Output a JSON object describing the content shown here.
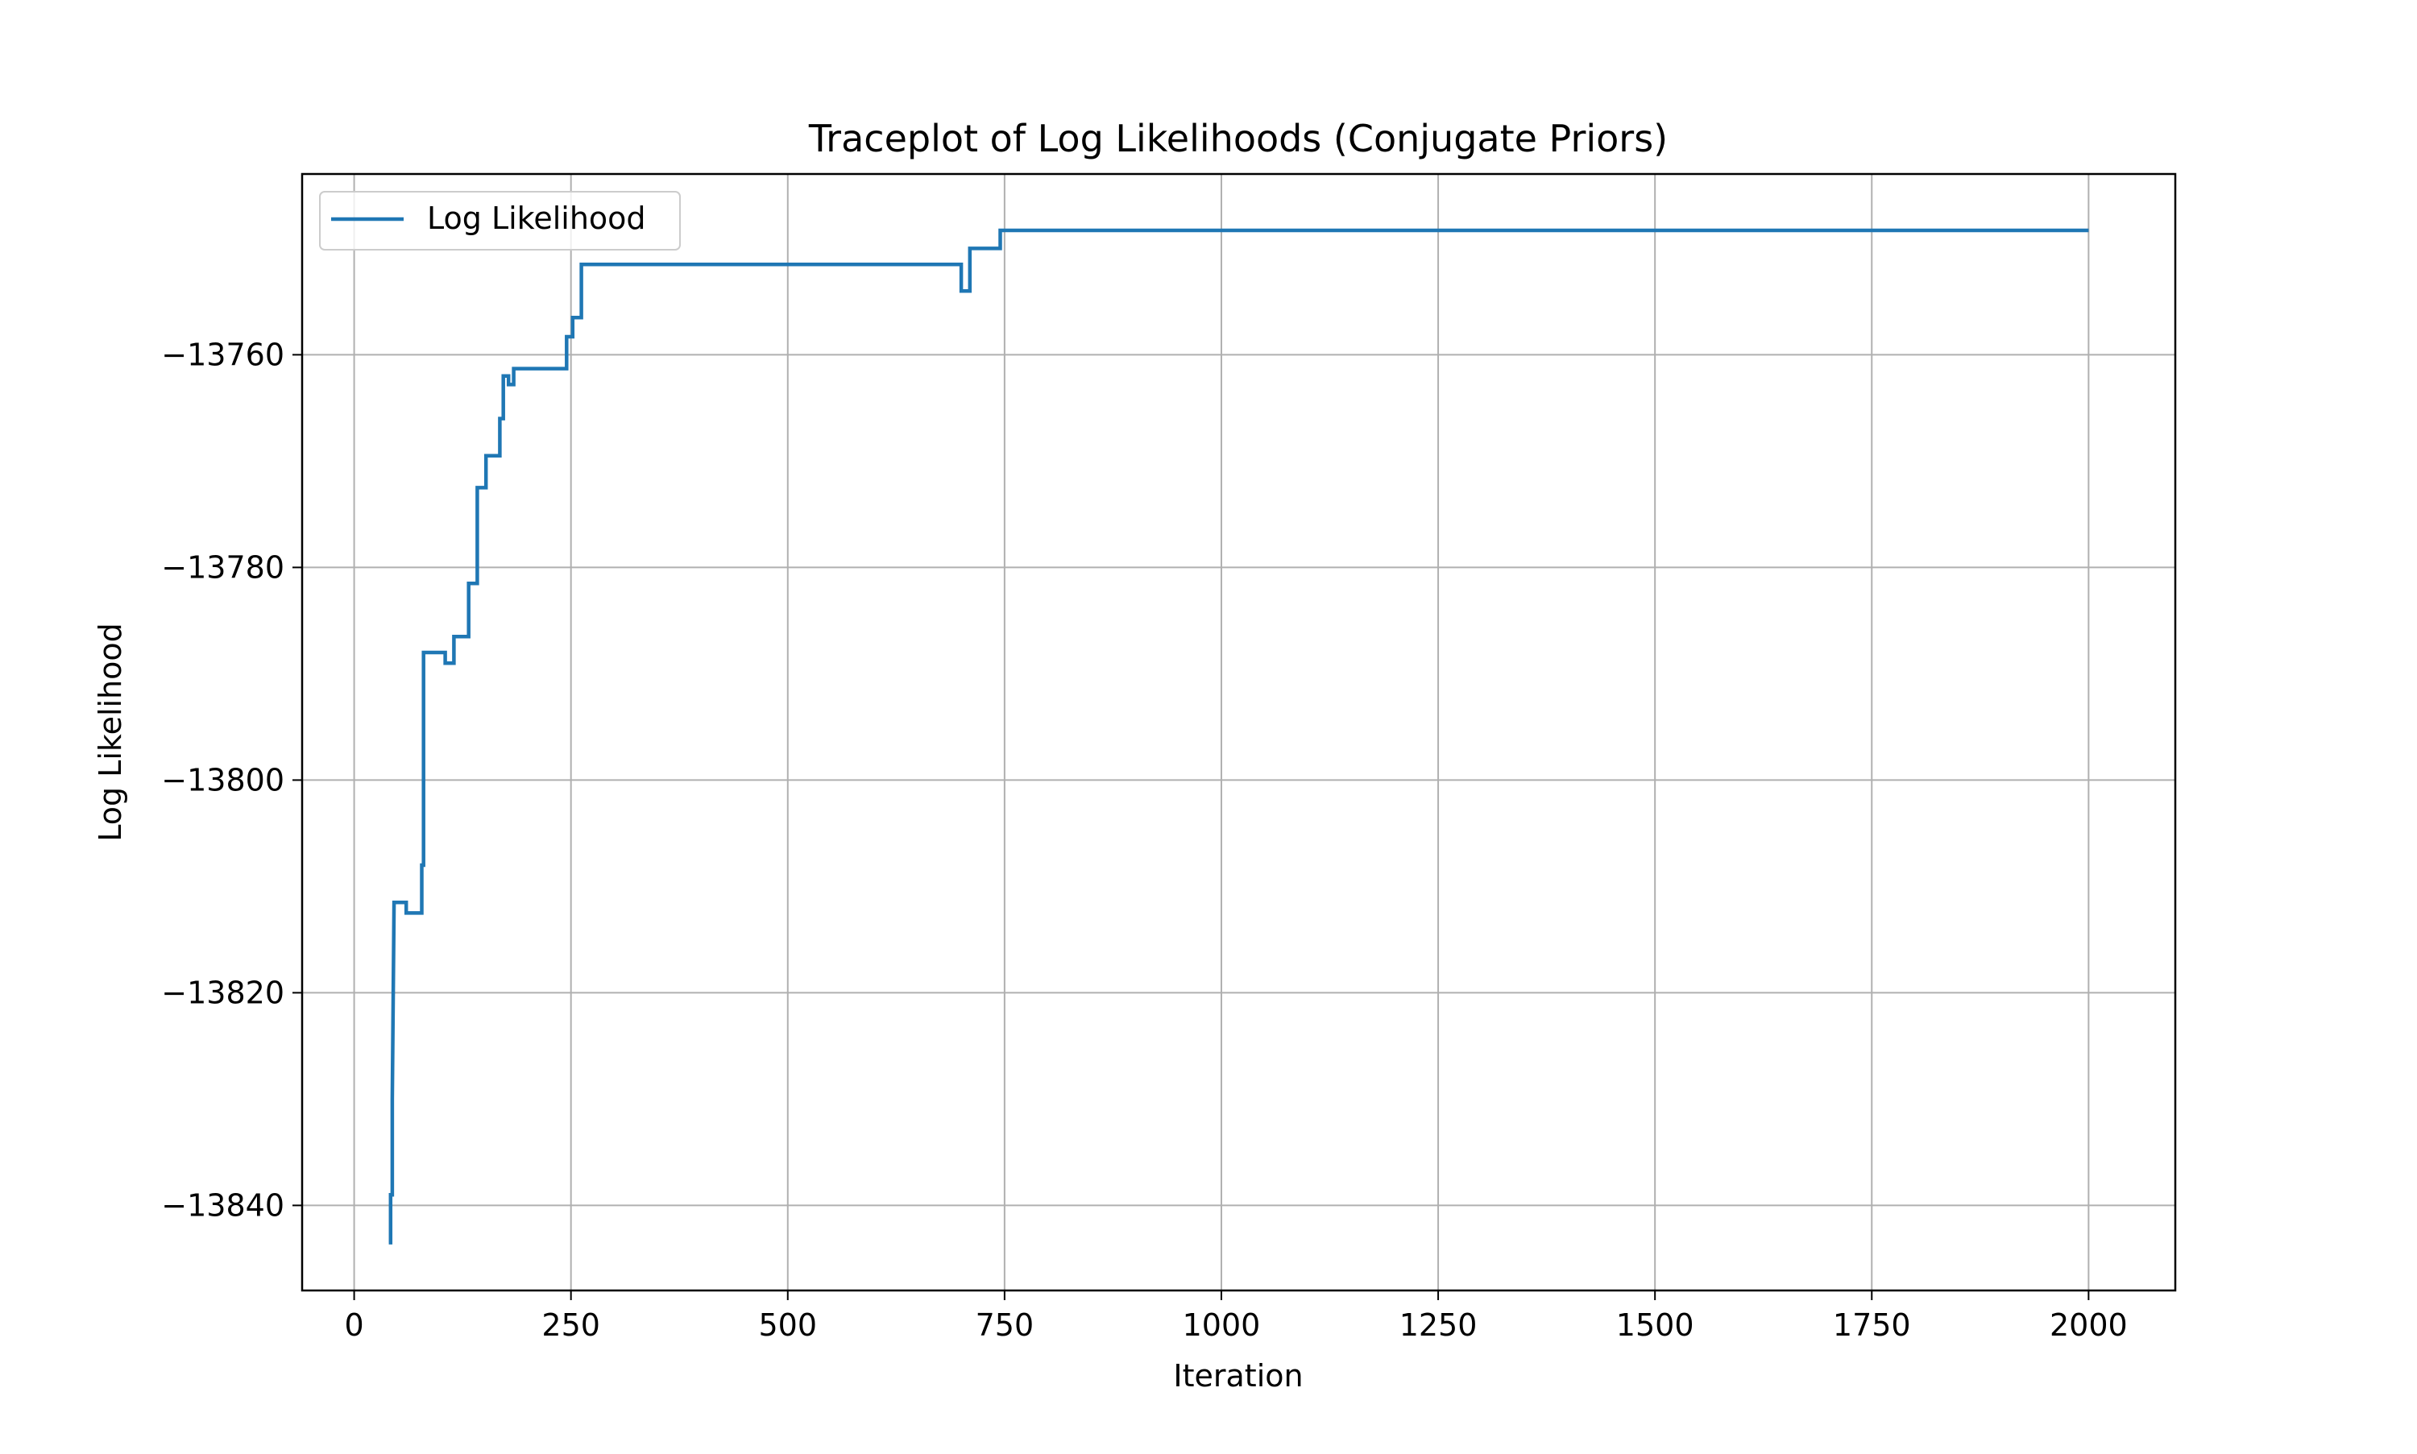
{
  "chart_data": {
    "type": "line",
    "title": "Traceplot of Log Likelihoods (Conjugate Priors)",
    "xlabel": "Iteration",
    "ylabel": "Log Likelihood",
    "xlim": [
      -60,
      2100
    ],
    "ylim": [
      -13848,
      -13743
    ],
    "xticks": [
      0,
      250,
      500,
      750,
      1000,
      1250,
      1500,
      1750,
      2000
    ],
    "yticks": [
      -13840,
      -13820,
      -13800,
      -13780,
      -13760
    ],
    "xtick_labels": [
      "0",
      "250",
      "500",
      "750",
      "1000",
      "1250",
      "1500",
      "1750",
      "2000"
    ],
    "ytick_labels": [
      "−13840",
      "−13820",
      "−13800",
      "−13780",
      "−13760"
    ],
    "grid": true,
    "legend_position": "upper left",
    "series": [
      {
        "name": "Log Likelihood",
        "color": "#1f77b4",
        "points": [
          [
            40,
            -13843.5
          ],
          [
            42,
            -13843.5
          ],
          [
            42,
            -13839
          ],
          [
            44,
            -13839
          ],
          [
            44,
            -13830
          ],
          [
            46,
            -13811.5
          ],
          [
            60,
            -13811.5
          ],
          [
            60,
            -13812.5
          ],
          [
            78,
            -13812.5
          ],
          [
            78,
            -13808
          ],
          [
            80,
            -13808
          ],
          [
            80,
            -13788
          ],
          [
            105,
            -13788
          ],
          [
            105,
            -13789
          ],
          [
            115,
            -13789
          ],
          [
            115,
            -13786.5
          ],
          [
            132,
            -13786.5
          ],
          [
            132,
            -13781.5
          ],
          [
            142,
            -13781.5
          ],
          [
            142,
            -13772.5
          ],
          [
            152,
            -13772.5
          ],
          [
            152,
            -13769.5
          ],
          [
            168,
            -13769.5
          ],
          [
            168,
            -13766
          ],
          [
            172,
            -13766
          ],
          [
            172,
            -13762
          ],
          [
            178,
            -13762
          ],
          [
            178,
            -13762.8
          ],
          [
            184,
            -13762.8
          ],
          [
            184,
            -13761.3
          ],
          [
            245,
            -13761.3
          ],
          [
            245,
            -13758.3
          ],
          [
            252,
            -13758.3
          ],
          [
            252,
            -13756.5
          ],
          [
            262,
            -13756.5
          ],
          [
            262,
            -13751.5
          ],
          [
            700,
            -13751.5
          ],
          [
            700,
            -13754
          ],
          [
            710,
            -13754
          ],
          [
            710,
            -13750
          ],
          [
            745,
            -13750
          ],
          [
            745,
            -13748.3
          ],
          [
            2000,
            -13748.3
          ]
        ]
      }
    ]
  }
}
